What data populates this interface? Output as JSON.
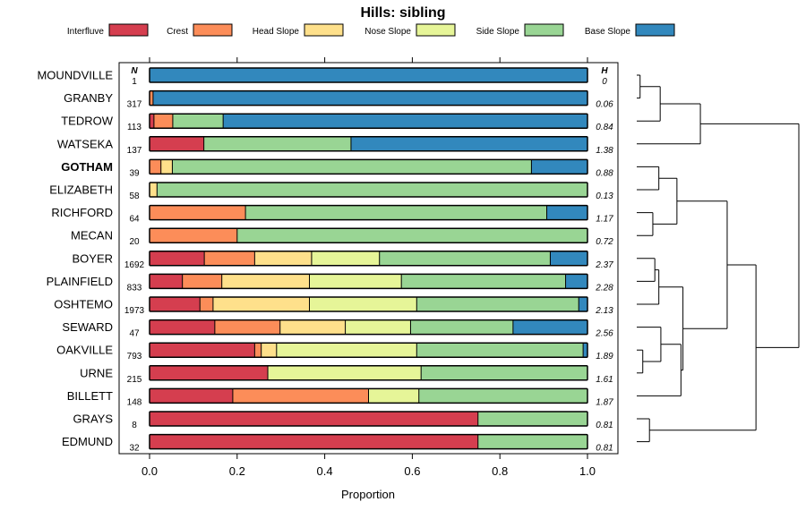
{
  "chart_data": {
    "type": "bar",
    "subtype": "stacked-horizontal-proportion",
    "title": "Hills: sibling",
    "xlabel": "Proportion",
    "xlim": [
      0,
      1
    ],
    "xticks": [
      "0.0",
      "0.2",
      "0.4",
      "0.6",
      "0.8",
      "1.0"
    ],
    "n_header": "N",
    "h_header": "H",
    "legend": [
      {
        "name": "Interfluve",
        "color": "#D53E4F"
      },
      {
        "name": "Crest",
        "color": "#FC8D59"
      },
      {
        "name": "Head Slope",
        "color": "#FEE08B"
      },
      {
        "name": "Nose Slope",
        "color": "#E6F598"
      },
      {
        "name": "Side Slope",
        "color": "#99D594"
      },
      {
        "name": "Base Slope",
        "color": "#3288BD"
      }
    ],
    "rows": [
      {
        "label": "MOUNDVILLE",
        "n": "1",
        "h": "0",
        "bold": false,
        "values": [
          0,
          0,
          0,
          0,
          0,
          1.0
        ]
      },
      {
        "label": "GRANBY",
        "n": "317",
        "h": "0.06",
        "bold": false,
        "values": [
          0,
          0.008,
          0,
          0,
          0,
          0.992
        ]
      },
      {
        "label": "TEDROW",
        "n": "113",
        "h": "0.84",
        "bold": false,
        "values": [
          0.01,
          0.043,
          0,
          0,
          0.115,
          0.832
        ]
      },
      {
        "label": "WATSEKA",
        "n": "137",
        "h": "1.38",
        "bold": false,
        "values": [
          0.124,
          0,
          0,
          0,
          0.336,
          0.54
        ]
      },
      {
        "label": "GOTHAM",
        "n": "39",
        "h": "0.88",
        "bold": true,
        "values": [
          0,
          0.026,
          0.026,
          0,
          0.82,
          0.128
        ]
      },
      {
        "label": "ELIZABETH",
        "n": "58",
        "h": "0.13",
        "bold": false,
        "values": [
          0,
          0,
          0.017,
          0,
          0.983,
          0
        ]
      },
      {
        "label": "RICHFORD",
        "n": "64",
        "h": "1.17",
        "bold": false,
        "values": [
          0,
          0.219,
          0,
          0,
          0.688,
          0.093
        ]
      },
      {
        "label": "MECAN",
        "n": "20",
        "h": "0.72",
        "bold": false,
        "values": [
          0,
          0.2,
          0,
          0,
          0.8,
          0
        ]
      },
      {
        "label": "BOYER",
        "n": "1692",
        "h": "2.37",
        "bold": false,
        "values": [
          0.125,
          0.115,
          0.13,
          0.155,
          0.39,
          0.085
        ]
      },
      {
        "label": "PLAINFIELD",
        "n": "833",
        "h": "2.28",
        "bold": false,
        "values": [
          0.075,
          0.09,
          0.2,
          0.21,
          0.375,
          0.05
        ]
      },
      {
        "label": "OSHTEMO",
        "n": "1973",
        "h": "2.13",
        "bold": false,
        "values": [
          0.115,
          0.03,
          0.22,
          0.245,
          0.37,
          0.02
        ]
      },
      {
        "label": "SEWARD",
        "n": "47",
        "h": "2.56",
        "bold": false,
        "values": [
          0.149,
          0.149,
          0.149,
          0.149,
          0.234,
          0.17
        ]
      },
      {
        "label": "OAKVILLE",
        "n": "793",
        "h": "1.89",
        "bold": false,
        "values": [
          0.24,
          0.015,
          0.035,
          0.32,
          0.38,
          0.01
        ]
      },
      {
        "label": "URNE",
        "n": "215",
        "h": "1.61",
        "bold": false,
        "values": [
          0.27,
          0,
          0,
          0.35,
          0.38,
          0
        ]
      },
      {
        "label": "BILLETT",
        "n": "148",
        "h": "1.87",
        "bold": false,
        "values": [
          0.19,
          0.31,
          0,
          0.115,
          0.385,
          0
        ]
      },
      {
        "label": "GRAYS",
        "n": "8",
        "h": "0.81",
        "bold": false,
        "values": [
          0.75,
          0,
          0,
          0,
          0.25,
          0
        ]
      },
      {
        "label": "EDMUND",
        "n": "32",
        "h": "0.81",
        "bold": false,
        "values": [
          0.75,
          0,
          0,
          0,
          0.25,
          0
        ]
      }
    ],
    "dendrogram": {
      "leaf_order": [
        "MOUNDVILLE",
        "GRANBY",
        "TEDROW",
        "WATSEKA",
        "GOTHAM",
        "ELIZABETH",
        "RICHFORD",
        "MECAN",
        "BOYER",
        "PLAINFIELD",
        "OSHTEMO",
        "SEWARD",
        "OAKVILLE",
        "URNE",
        "BILLETT",
        "GRAYS",
        "EDMUND"
      ],
      "merges": [
        {
          "a": "L0",
          "b": "L1",
          "height": 0.05
        },
        {
          "a": "M0",
          "b": "L2",
          "height": 0.35
        },
        {
          "a": "M1",
          "b": "L3",
          "height": 0.95
        },
        {
          "a": "L4",
          "b": "L5",
          "height": 0.33
        },
        {
          "a": "L6",
          "b": "L7",
          "height": 0.24
        },
        {
          "a": "M3",
          "b": "M4",
          "height": 0.6
        },
        {
          "a": "L8",
          "b": "L9",
          "height": 0.27
        },
        {
          "a": "M6",
          "b": "L10",
          "height": 0.33
        },
        {
          "a": "L12",
          "b": "L13",
          "height": 0.09
        },
        {
          "a": "M8",
          "b": "L11",
          "height": 0.36
        },
        {
          "a": "M9",
          "b": "L14",
          "height": 0.66
        },
        {
          "a": "M7",
          "b": "M10",
          "height": 0.69
        },
        {
          "a": "M5",
          "b": "M11",
          "height": 1.35
        },
        {
          "a": "L15",
          "b": "L16",
          "height": 0.19
        },
        {
          "a": "M12",
          "b": "M13",
          "height": 1.78
        },
        {
          "a": "M2",
          "b": "M14",
          "height": 2.42
        }
      ]
    }
  }
}
